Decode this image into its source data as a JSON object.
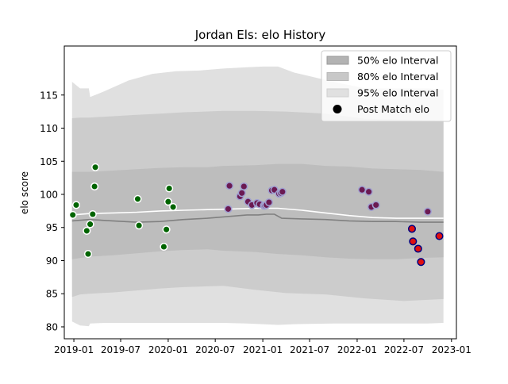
{
  "chart_data": {
    "type": "scatter",
    "title": "Jordan Els: elo History",
    "xlabel": "",
    "ylabel": "elo score",
    "xlim": [
      "2018-11-25",
      "2023-01-20"
    ],
    "ylim": [
      78.2,
      122.4
    ],
    "x_ticks": [
      "2019-01",
      "2019-07",
      "2020-01",
      "2020-07",
      "2021-01",
      "2021-07",
      "2022-01",
      "2022-07",
      "2023-01"
    ],
    "y_ticks": [
      80,
      85,
      90,
      95,
      100,
      105,
      110,
      115
    ],
    "grid": false,
    "legend": {
      "position": "top-right",
      "entries": [
        "50% elo Interval",
        "80% elo Interval",
        "95% elo Interval",
        "Post Match elo"
      ]
    },
    "bands": [
      {
        "name": "95% elo Interval",
        "color": "#e0e0e0",
        "x": [
          "2018-12-25",
          "2019-01-25",
          "2019-02-28",
          "2019-03-05",
          "2019-05-01",
          "2019-08-01",
          "2019-11-01",
          "2020-02-01",
          "2020-05-01",
          "2020-08-01",
          "2020-11-01",
          "2021-01-01",
          "2021-03-01",
          "2021-05-01",
          "2021-10-01",
          "2022-02-01",
          "2022-07-01",
          "2022-10-01",
          "2022-12-01"
        ],
        "upper": [
          117.0,
          116.0,
          116.0,
          114.7,
          115.6,
          117.2,
          118.2,
          118.6,
          118.7,
          119.0,
          119.2,
          119.3,
          119.3,
          118.4,
          117.0,
          116.0,
          116.0,
          116.0,
          115.8
        ],
        "lower": [
          80.8,
          80.2,
          80.1,
          80.5,
          80.6,
          80.6,
          80.6,
          80.6,
          80.6,
          80.6,
          80.5,
          80.4,
          80.3,
          80.4,
          80.5,
          80.5,
          80.5,
          80.5,
          80.6
        ]
      },
      {
        "name": "80% elo Interval",
        "color": "#cccccc",
        "x": [
          "2018-12-25",
          "2019-01-25",
          "2019-03-01",
          "2019-06-01",
          "2019-09-01",
          "2019-12-01",
          "2020-03-01",
          "2020-08-01",
          "2020-12-01",
          "2021-04-01",
          "2021-09-01",
          "2022-02-01",
          "2022-07-01",
          "2022-12-01"
        ],
        "upper": [
          111.5,
          111.6,
          111.6,
          111.8,
          112.0,
          112.2,
          112.4,
          112.6,
          112.6,
          112.5,
          112.2,
          111.4,
          111.3,
          111.1
        ],
        "lower": [
          84.5,
          84.9,
          85.0,
          85.2,
          85.5,
          85.8,
          86.0,
          86.2,
          85.6,
          85.1,
          84.9,
          84.3,
          83.9,
          84.2
        ]
      },
      {
        "name": "50% elo Interval",
        "color": "#bdbdbd",
        "x": [
          "2018-12-25",
          "2019-03-01",
          "2019-06-01",
          "2019-09-01",
          "2019-12-01",
          "2020-03-01",
          "2020-06-01",
          "2020-08-01",
          "2020-12-01",
          "2021-03-01",
          "2021-06-01",
          "2021-09-01",
          "2021-12-01",
          "2022-03-01",
          "2022-06-01",
          "2022-09-01",
          "2022-12-01"
        ],
        "upper": [
          103.4,
          103.4,
          103.6,
          103.8,
          104.0,
          104.1,
          104.1,
          104.3,
          104.4,
          104.6,
          104.6,
          104.3,
          104.2,
          103.9,
          103.8,
          103.7,
          103.4
        ],
        "lower": [
          90.2,
          90.6,
          90.8,
          91.1,
          91.4,
          91.6,
          91.7,
          91.5,
          91.3,
          91.0,
          90.8,
          90.5,
          90.3,
          90.2,
          90.2,
          90.4,
          90.5
        ]
      }
    ],
    "lines": [
      {
        "color": "#ffffff",
        "x": [
          "2018-12-25",
          "2019-03-01",
          "2019-06-01",
          "2019-09-01",
          "2019-12-01",
          "2020-03-01",
          "2020-06-01",
          "2020-09-01",
          "2020-12-01",
          "2021-03-01",
          "2021-06-01",
          "2021-09-01",
          "2021-12-01",
          "2022-03-01",
          "2022-06-01",
          "2022-09-01",
          "2022-12-01"
        ],
        "y": [
          96.9,
          97.1,
          97.2,
          97.3,
          97.5,
          97.6,
          97.7,
          97.8,
          97.9,
          97.9,
          97.6,
          97.2,
          96.8,
          96.5,
          96.4,
          96.4,
          96.4
        ]
      },
      {
        "color": "#808080",
        "x": [
          "2018-12-25",
          "2019-03-01",
          "2019-06-01",
          "2019-09-01",
          "2019-12-01",
          "2020-03-01",
          "2020-06-01",
          "2020-09-01",
          "2020-11-01",
          "2020-12-15",
          "2021-01-15",
          "2021-02-15",
          "2021-03-15",
          "2021-06-01",
          "2021-09-01",
          "2021-12-01",
          "2022-03-01",
          "2022-06-01",
          "2022-09-01",
          "2022-12-01"
        ],
        "y": [
          96.0,
          96.2,
          96.0,
          95.8,
          95.9,
          96.2,
          96.4,
          96.7,
          96.9,
          96.9,
          97.0,
          97.0,
          96.4,
          96.3,
          96.2,
          96.0,
          95.9,
          95.9,
          95.8,
          95.8
        ]
      }
    ],
    "series": [
      {
        "name": "Post Match elo",
        "color": "#006400",
        "edge": "#ffffff",
        "x": [
          "2018-12-28",
          "2019-01-10",
          "2019-02-20",
          "2019-02-25",
          "2019-03-05",
          "2019-03-15",
          "2019-03-22",
          "2019-03-25",
          "2019-09-05",
          "2019-09-10",
          "2019-12-15",
          "2019-12-25",
          "2020-01-01",
          "2020-01-05",
          "2020-01-20"
        ],
        "y": [
          96.9,
          98.4,
          94.5,
          91.0,
          95.5,
          97.0,
          101.2,
          104.1,
          99.3,
          95.3,
          92.1,
          94.7,
          98.9,
          100.9,
          98.1
        ]
      },
      {
        "name": "",
        "color": "#6b1a52",
        "edge": "#a0a0d0",
        "x": [
          "2020-08-20",
          "2020-08-25",
          "2020-10-05",
          "2020-10-12",
          "2020-10-20",
          "2020-11-05",
          "2020-11-20",
          "2020-12-10",
          "2020-12-20",
          "2021-01-05",
          "2021-01-10",
          "2021-01-15",
          "2021-01-25",
          "2021-02-05",
          "2021-02-15",
          "2021-03-05",
          "2021-03-12",
          "2021-03-18",
          "2022-01-20",
          "2022-02-15",
          "2022-02-25",
          "2022-03-15",
          "2022-10-01"
        ],
        "y": [
          97.8,
          101.3,
          99.7,
          100.2,
          101.2,
          98.9,
          98.4,
          98.7,
          98.5,
          98.3,
          98.3,
          98.4,
          98.8,
          100.6,
          100.7,
          100.1,
          100.2,
          100.4,
          100.7,
          100.4,
          98.1,
          98.4,
          97.4
        ]
      },
      {
        "name": "",
        "color": "#e01010",
        "edge": "#000080",
        "x": [
          "2022-08-01",
          "2022-08-05",
          "2022-08-25",
          "2022-09-05",
          "2022-11-15"
        ],
        "y": [
          94.8,
          92.9,
          91.8,
          89.8,
          93.7
        ]
      }
    ]
  }
}
